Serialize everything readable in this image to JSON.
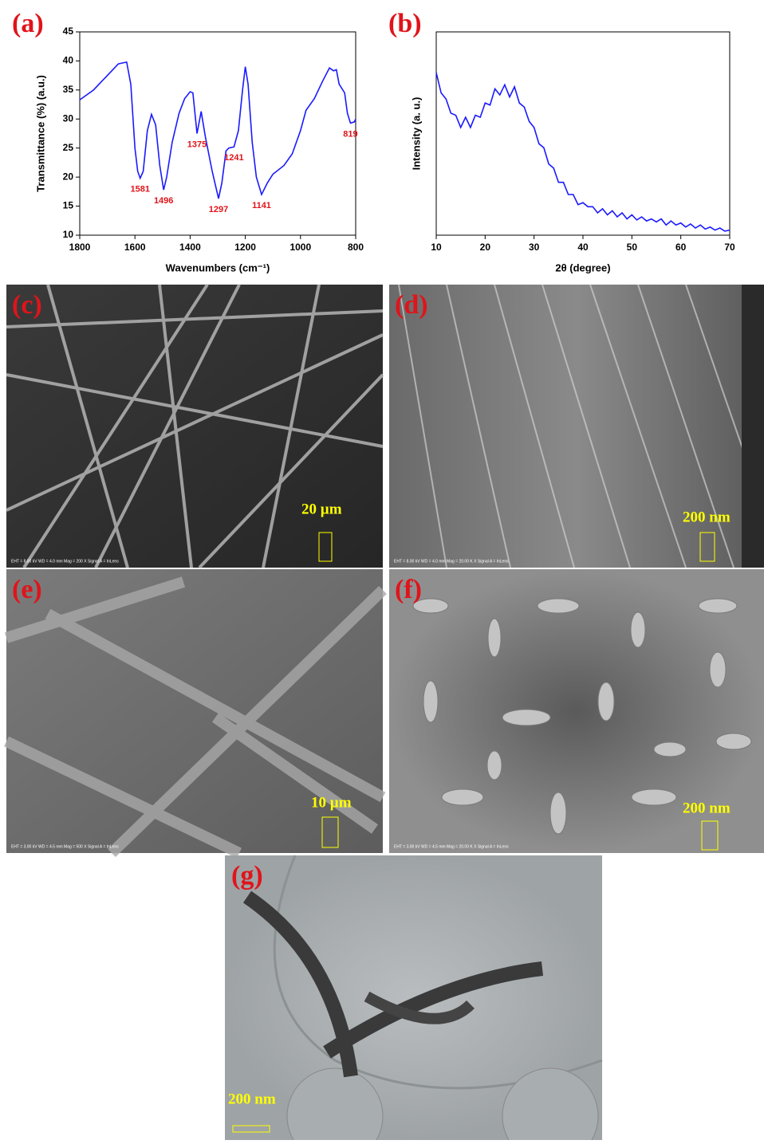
{
  "chart_data": [
    {
      "type": "line",
      "title": "(a)",
      "x_label": "Wavenumbers (cm⁻¹)",
      "y_label": "Transmittance (%) (a.u.)",
      "xlim": [
        1800,
        800
      ],
      "xticks": [
        1800,
        1600,
        1400,
        1200,
        1000,
        800
      ],
      "ylim": [
        10,
        45
      ],
      "yticks": [
        10,
        15,
        20,
        25,
        30,
        35,
        40,
        45
      ],
      "color": "#1a1aff",
      "x": [
        1800,
        1750,
        1700,
        1660,
        1640,
        1630,
        1615,
        1600,
        1590,
        1581,
        1570,
        1555,
        1540,
        1525,
        1510,
        1496,
        1485,
        1465,
        1440,
        1420,
        1400,
        1390,
        1375,
        1360,
        1345,
        1320,
        1297,
        1285,
        1270,
        1260,
        1241,
        1225,
        1210,
        1200,
        1190,
        1175,
        1160,
        1141,
        1120,
        1100,
        1060,
        1030,
        1000,
        980,
        950,
        920,
        895,
        880,
        870,
        860,
        840,
        830,
        819,
        805,
        800
      ],
      "values": [
        33.3,
        35,
        37.5,
        39.5,
        39.7,
        39.8,
        36,
        25,
        21,
        19.8,
        21,
        28,
        30.8,
        29,
        22,
        17.8,
        20,
        26,
        31,
        33.5,
        34.7,
        34.5,
        27.5,
        31.3,
        27,
        21,
        16.3,
        19,
        24.5,
        25,
        25.2,
        28,
        35,
        39,
        36,
        26,
        20,
        17,
        19,
        20.5,
        22,
        24,
        28,
        31.5,
        33.5,
        36.5,
        38.8,
        38.3,
        38.5,
        36,
        34.5,
        31,
        29.3,
        29.5,
        30
      ],
      "annotations": [
        {
          "label": "1581",
          "x": 1581
        },
        {
          "label": "1496",
          "x": 1496
        },
        {
          "label": "1375",
          "x": 1375
        },
        {
          "label": "1297",
          "x": 1297
        },
        {
          "label": "1241",
          "x": 1241
        },
        {
          "label": "1141",
          "x": 1141
        },
        {
          "label": "819",
          "x": 819
        }
      ]
    },
    {
      "type": "line",
      "title": "(b)",
      "x_label": "2θ (degree)",
      "y_label": "Intensity (a. u.)",
      "xlim": [
        10,
        70
      ],
      "xticks": [
        10,
        20,
        30,
        40,
        50,
        60,
        70
      ],
      "ylim": [
        0,
        100
      ],
      "color": "#1a1aff",
      "x": [
        10,
        11,
        12,
        13,
        14,
        15,
        16,
        17,
        18,
        19,
        20,
        21,
        22,
        23,
        24,
        25,
        26,
        27,
        28,
        29,
        30,
        31,
        32,
        33,
        34,
        35,
        36,
        37,
        38,
        39,
        40,
        41,
        42,
        43,
        44,
        45,
        46,
        47,
        48,
        49,
        50,
        51,
        52,
        53,
        54,
        55,
        56,
        57,
        58,
        59,
        60,
        61,
        62,
        63,
        64,
        65,
        66,
        67,
        68,
        69,
        70
      ],
      "values": [
        80,
        70,
        67,
        60,
        59,
        53,
        58,
        53,
        59,
        58,
        65,
        64,
        72,
        69,
        74,
        68,
        73,
        65,
        63,
        56,
        53,
        45,
        43,
        35,
        33,
        26,
        26,
        20,
        20,
        15,
        16,
        14,
        14,
        11,
        13,
        10,
        12,
        9,
        11,
        8,
        10,
        7.5,
        9,
        7,
        8,
        6.5,
        8,
        5,
        7,
        5,
        6,
        4,
        5.5,
        3.5,
        5,
        3,
        4,
        2.5,
        3.5,
        2,
        2.5
      ]
    }
  ],
  "panels": [
    {
      "label": "(c)",
      "scale": "20 µm",
      "info": "EHT = 8.00 kV    WD = 4.0 mm    Mag = 200 X    Signal A = InLens"
    },
    {
      "label": "(d)",
      "scale": "200 nm",
      "info": "EHT = 8.00 kV    WD = 4.0 mm    Mag = 20.00 K X    Signal A = InLens"
    },
    {
      "label": "(e)",
      "scale": "10 µm",
      "info": "EHT = 3.00 kV    WD = 4.5 mm    Mag = 500 X    Signal A = InLens"
    },
    {
      "label": "(f)",
      "scale": "200 nm",
      "info": "EHT = 3.00 kV    WD = 4.5 mm    Mag = 20.00 K X    Signal A = InLens"
    },
    {
      "label": "(g)",
      "scale": "200 nm"
    }
  ]
}
